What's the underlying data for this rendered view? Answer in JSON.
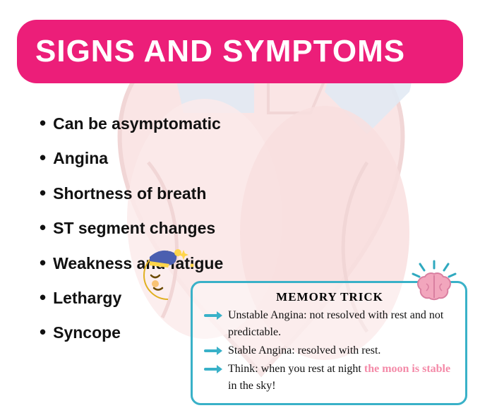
{
  "colors": {
    "accent": "#ec1e79",
    "title_text": "#ffffff",
    "body_text": "#111111",
    "box_border": "#39b1c8",
    "arrow": "#39b1c8",
    "highlight_pink": "#f48aa8",
    "heart_pink": "#f2b6b6",
    "heart_blue": "#aec4e0",
    "heart_outline": "#d88c8c",
    "moon_yellow": "#ffd54a",
    "moon_cap": "#4b5fb0",
    "brain_pink": "#f2a6bd",
    "brain_rays": "#2fa9bf"
  },
  "title": "SIGNS AND SYMPTOMS",
  "symptoms": [
    "Can be asymptomatic",
    "Angina",
    "Shortness of breath",
    "ST segment changes",
    "Weakness and fatigue",
    "Lethargy",
    "Syncope"
  ],
  "memory": {
    "title": "MEMORY TRICK",
    "lines": [
      "Unstable Angina: not resolved with rest and not predictable.",
      "Stable Angina: resolved with rest.",
      "Think: when you rest at night <hl>the moon is stable</hl> in the sky!"
    ]
  }
}
